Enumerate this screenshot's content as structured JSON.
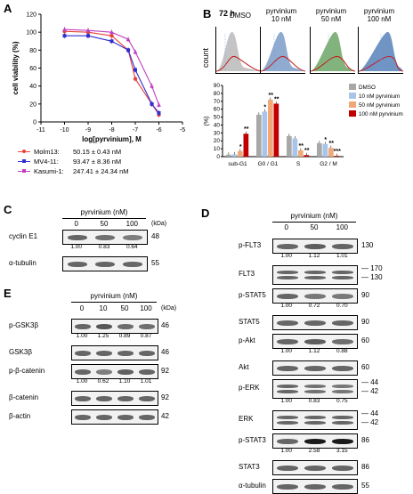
{
  "panels": {
    "a": "A",
    "b": "B",
    "c": "C",
    "d": "D",
    "e": "E"
  },
  "colors": {
    "molm13": "#e8433b",
    "mv411": "#3030d0",
    "kasumi": "#c040c0",
    "dmso": "#a8a8a8",
    "p10": "#a8c4e8",
    "p50": "#f0a878",
    "p100": "#c00000"
  },
  "chart_data": [
    {
      "type": "line",
      "panel": "A",
      "xlabel": "log[pyrvinium], M",
      "ylabel": "cell viability (%)",
      "xlim": [
        -11,
        -5
      ],
      "ylim": [
        0,
        120
      ],
      "x_ticks": [
        "-11",
        "-10",
        "-9",
        "-8",
        "-7",
        "-6",
        "-5"
      ],
      "y_ticks": [
        "0",
        "20",
        "40",
        "60",
        "80",
        "100",
        "120"
      ],
      "series": [
        {
          "name": "Molm13:",
          "ic50": "50.15 ± 0.43 nM",
          "x": [
            -10,
            -9,
            -8,
            -7.3,
            -7,
            -6.3,
            -6
          ],
          "y": [
            101,
            100,
            96,
            80,
            48,
            20,
            8
          ]
        },
        {
          "name": "MV4-11:",
          "ic50": "93.47 ± 8.36 nM",
          "x": [
            -10,
            -9,
            -8,
            -7.3,
            -7,
            -6.3,
            -6
          ],
          "y": [
            96,
            96,
            90,
            80,
            58,
            20,
            10
          ]
        },
        {
          "name": "Kasumi-1:",
          "ic50": "247.41 ± 24.34 nM",
          "x": [
            -10,
            -9,
            -8,
            -7.3,
            -7,
            -6.3,
            -6
          ],
          "y": [
            103,
            102,
            100,
            92,
            78,
            40,
            19
          ]
        }
      ]
    },
    {
      "type": "bar",
      "panel": "B",
      "ylabel": "(%)",
      "ylim": [
        0,
        90
      ],
      "y_ticks": [
        "0",
        "10",
        "20",
        "30",
        "40",
        "50",
        "60",
        "70",
        "80",
        "90"
      ],
      "categories": [
        "sub-G1",
        "G0 / G1",
        "S",
        "G2 / M"
      ],
      "series": [
        {
          "name": "DMSO",
          "values": [
            2.5,
            53,
            26,
            17
          ]
        },
        {
          "name": "10 nM pyrvinium",
          "values": [
            3,
            57,
            23,
            16
          ]
        },
        {
          "name": "50 nM pyrvinium",
          "values": [
            7,
            72,
            8,
            11
          ]
        },
        {
          "name": "100 nM pyrvinium",
          "values": [
            29,
            67,
            2,
            1
          ]
        }
      ],
      "significance": [
        {
          "category": 0,
          "series": 2,
          "mark": "*"
        },
        {
          "category": 0,
          "series": 3,
          "mark": "**"
        },
        {
          "category": 1,
          "series": 1,
          "mark": "*"
        },
        {
          "category": 1,
          "series": 2,
          "mark": "**"
        },
        {
          "category": 1,
          "series": 3,
          "mark": "**"
        },
        {
          "category": 2,
          "series": 2,
          "mark": "**"
        },
        {
          "category": 2,
          "series": 3,
          "mark": "**"
        },
        {
          "category": 3,
          "series": 1,
          "mark": "*"
        },
        {
          "category": 3,
          "series": 2,
          "mark": "**"
        },
        {
          "category": 3,
          "series": 3,
          "mark": "***"
        }
      ]
    }
  ],
  "flow": {
    "time": "72 h",
    "ylabel": "count",
    "titles": [
      "DMSO",
      "pyrvinium\n10 nM",
      "pyrvinium\n50 nM",
      "pyrvinium\n100 nM"
    ]
  },
  "blot_c": {
    "header": "pyrvinium (nM)",
    "lanes": [
      "0",
      "50",
      "100"
    ],
    "rows": [
      {
        "label": "cyclin E1",
        "mw": "48",
        "quant": [
          "1.00",
          "0.83",
          "0.64"
        ]
      },
      {
        "label": "α-tubulin",
        "mw": "55"
      }
    ]
  },
  "blot_d": {
    "header": "pyrvinium (nM)",
    "lanes": [
      "0",
      "50",
      "100"
    ],
    "rows": [
      {
        "label": "p-FLT3",
        "mw": "130",
        "quant": [
          "1.00",
          "1.12",
          "1.01"
        ]
      },
      {
        "label": "FLT3",
        "mw": "170",
        "mw2": "130"
      },
      {
        "label": "p-STAT5",
        "mw": "90",
        "quant": [
          "1.00",
          "0.72",
          "0.70"
        ]
      },
      {
        "label": "STAT5",
        "mw": "90"
      },
      {
        "label": "p-Akt",
        "mw": "60",
        "quant": [
          "1.00",
          "1.12",
          "0.88"
        ]
      },
      {
        "label": "Akt",
        "mw": "60"
      },
      {
        "label": "p-ERK",
        "mw": "44",
        "mw2": "42",
        "quant": [
          "1.00",
          "0.83",
          "0.75"
        ]
      },
      {
        "label": "ERK",
        "mw": "44",
        "mw2": "42"
      },
      {
        "label": "p-STAT3",
        "mw": "86",
        "quant": [
          "1.00",
          "2.58",
          "3.15"
        ]
      },
      {
        "label": "STAT3",
        "mw": "86"
      },
      {
        "label": "α-tubulin",
        "mw": "55"
      }
    ]
  },
  "blot_e": {
    "header": "pyrvinium (nM)",
    "lanes": [
      "0",
      "10",
      "50",
      "100"
    ],
    "kda": "(kDa)",
    "rows": [
      {
        "label": "p-GSK3β",
        "mw": "46",
        "quant": [
          "1.00",
          "1.25",
          "0.89",
          "0.87"
        ]
      },
      {
        "label": "GSK3β",
        "mw": "46"
      },
      {
        "label": "p-β-catenin",
        "mw": "92",
        "quant": [
          "1.00",
          "0.62",
          "1.10",
          "1.01"
        ]
      },
      {
        "label": "β-catenin",
        "mw": "92"
      },
      {
        "label": "β-actin",
        "mw": "42"
      }
    ]
  },
  "kda": "(kDa)"
}
